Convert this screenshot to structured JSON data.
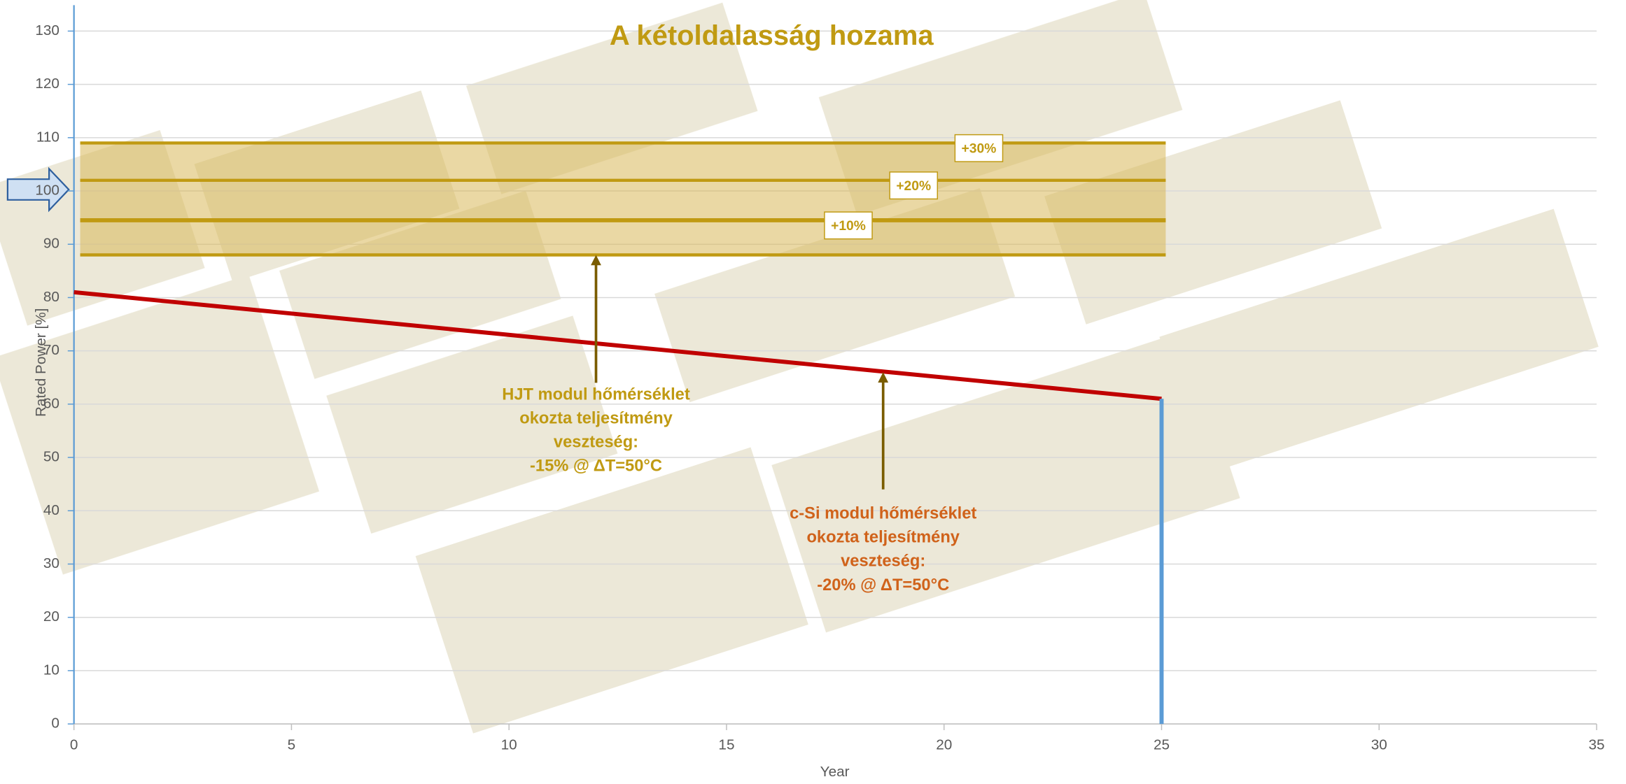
{
  "chart_data": {
    "type": "line",
    "title": "A kétoldalasság hozama",
    "xlabel": "Year",
    "ylabel": "Rated Power [%]",
    "xlim": [
      0,
      35
    ],
    "xticks": [
      0,
      5,
      10,
      15,
      20,
      25,
      30,
      35
    ],
    "ylim": [
      0,
      130
    ],
    "yticks": [
      0,
      10,
      20,
      30,
      40,
      50,
      60,
      70,
      80,
      90,
      100,
      110,
      120,
      130
    ],
    "grid": true,
    "series": [
      {
        "color": "#c00000",
        "x": [
          0,
          25
        ],
        "values": [
          81,
          61
        ]
      },
      {
        "color": "#5b9bd5",
        "x": [
          25,
          25
        ],
        "values": [
          61,
          0
        ]
      }
    ],
    "hline_color": "#c09a12",
    "hline_x": [
      0,
      25
    ],
    "hlines": [
      {
        "value": 109,
        "label": "+30%",
        "label_x": 20.8
      },
      {
        "value": 102,
        "label": "+20%",
        "label_x": 19.3
      },
      {
        "value": 94.5,
        "label": "+10%",
        "label_x": 17.8
      },
      {
        "value": 88
      }
    ],
    "annotations": [
      {
        "lines": [
          "HJT modul hőmérséklet",
          "okozta teljesítmény",
          "veszteség:",
          "-15% @ ΔT=50°C"
        ],
        "color": "#c09a12",
        "x": 12,
        "from": 64,
        "to": 88
      },
      {
        "lines": [
          "c-Si modul hőmérséklet",
          "okozta teljesítmény",
          "veszteség:",
          "-20% @ ΔT=50°C"
        ],
        "color": "#d0621a",
        "x": 18.6,
        "from": 44,
        "to": 66
      }
    ]
  }
}
